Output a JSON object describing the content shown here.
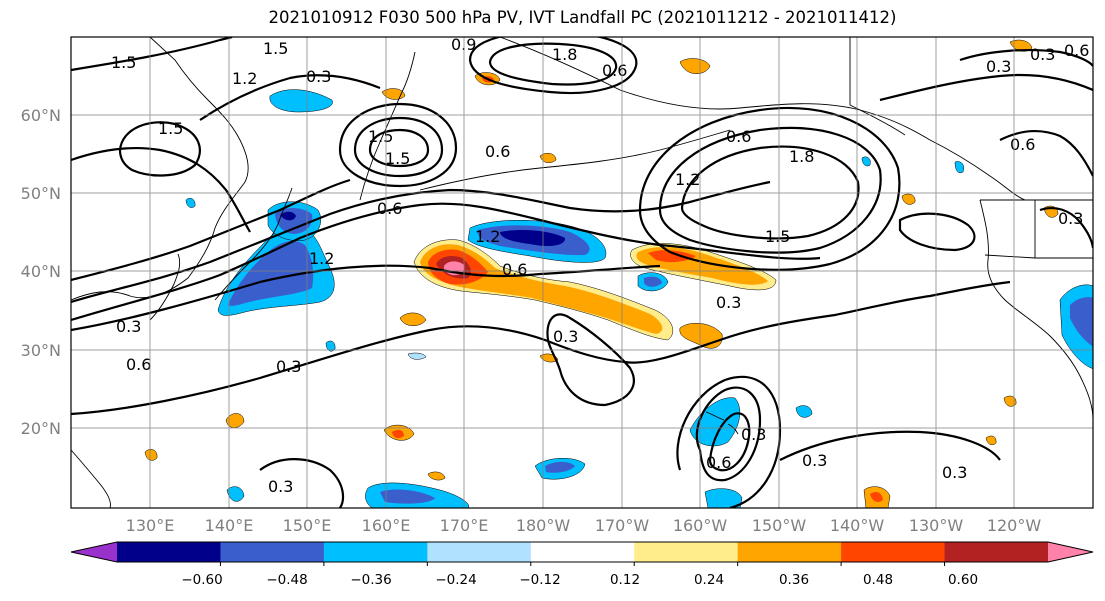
{
  "title": "2021010912 F030 500 hPa PV, IVT Landfall PC (2021011212 - 2021011412)",
  "lat_labels": [
    "60°N",
    "50°N",
    "40°N",
    "30°N",
    "20°N"
  ],
  "lon_labels": [
    "130°E",
    "140°E",
    "150°E",
    "160°E",
    "170°E",
    "180°W",
    "170°W",
    "160°W",
    "150°W",
    "140°W",
    "130°W",
    "120°W"
  ],
  "colorbar": {
    "levels": [
      "−0.60",
      "−0.48",
      "−0.36",
      "−0.24",
      "−0.12",
      "0.12",
      "0.24",
      "0.36",
      "0.48",
      "0.60"
    ],
    "colors": [
      "#9932cc",
      "#00008b",
      "#3a5fcd",
      "#00bfff",
      "#b0e2ff",
      "#ffffff",
      "#ffec8b",
      "#ffa500",
      "#ff4500",
      "#b22222",
      "#ff82ab"
    ]
  },
  "contour_labels": [
    "1.5",
    "1.2",
    "0.3",
    "1.5",
    "1.5",
    "1.5",
    "0.9",
    "1.8",
    "0.6",
    "0.6",
    "1.2",
    "1.5",
    "0.6",
    "1.8",
    "1.5",
    "1.2",
    "0.6",
    "0.3",
    "0.3",
    "0.6",
    "0.3",
    "1.2",
    "0.6",
    "0.3",
    "0.6",
    "0.3",
    "0.6",
    "0.3",
    "0.3",
    "0.3",
    "0.3",
    "0.6",
    "0.3",
    "0.3"
  ]
}
